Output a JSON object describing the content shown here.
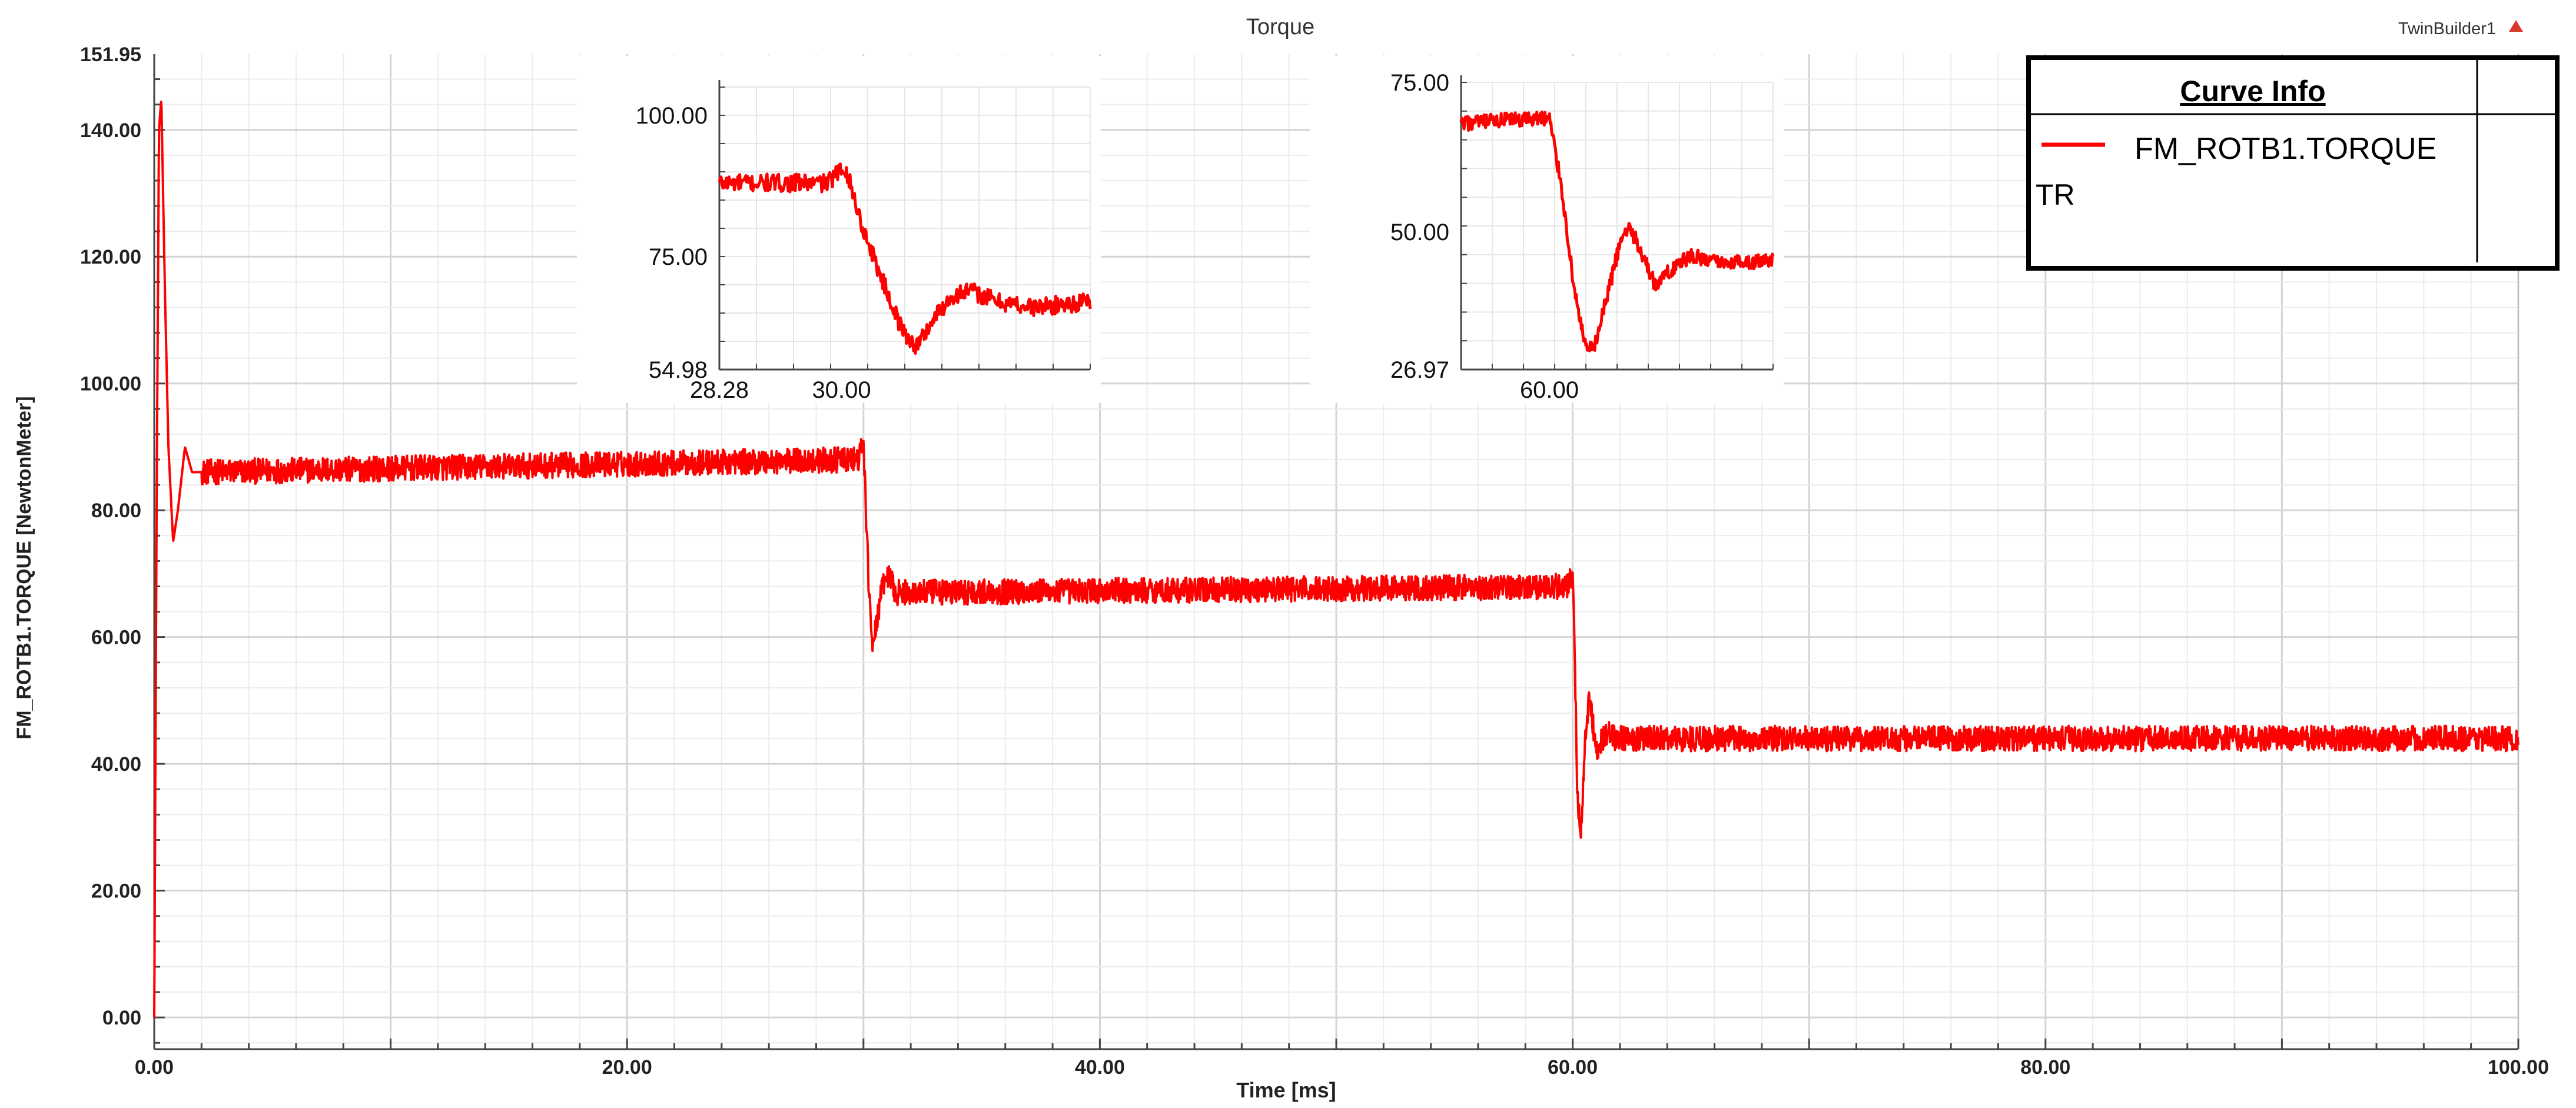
{
  "chart_data": [
    {
      "id": "main",
      "type": "line",
      "title": "Torque",
      "corner_label": "TwinBuilder1",
      "corner_icon": "red-triangle-icon",
      "xlabel": "Time [ms]",
      "ylabel": "FM_ROTB1.TORQUE [NewtonMeter]",
      "xlim": [
        0,
        100
      ],
      "ylim": [
        -5,
        151.95
      ],
      "xticks": [
        "0.00",
        "20.00",
        "40.00",
        "60.00",
        "80.00",
        "100.00"
      ],
      "xtick_values": [
        0,
        20,
        40,
        60,
        80,
        100
      ],
      "yticks": [
        "0.00",
        "20.00",
        "40.00",
        "60.00",
        "80.00",
        "100.00",
        "120.00",
        "140.00",
        "151.95"
      ],
      "ytick_values": [
        0,
        20,
        40,
        60,
        80,
        100,
        120,
        140,
        151.95
      ],
      "grid": true,
      "series": [
        {
          "name": "FM_ROTB1.TORQUE",
          "color": "#ff0000",
          "keypoints": [
            [
              0,
              0
            ],
            [
              0.1,
              80
            ],
            [
              0.2,
              140
            ],
            [
              0.3,
              145
            ],
            [
              0.45,
              115
            ],
            [
              0.6,
              90
            ],
            [
              0.8,
              75
            ],
            [
              1.0,
              80
            ],
            [
              1.3,
              90
            ],
            [
              1.6,
              86
            ],
            [
              29.8,
              88
            ],
            [
              30.0,
              91
            ],
            [
              30.2,
              70
            ],
            [
              30.4,
              58
            ],
            [
              30.7,
              66
            ],
            [
              31.0,
              70
            ],
            [
              31.4,
              67
            ],
            [
              59.8,
              68
            ],
            [
              60.0,
              70
            ],
            [
              60.1,
              55
            ],
            [
              60.2,
              35
            ],
            [
              60.35,
              29
            ],
            [
              60.55,
              45
            ],
            [
              60.7,
              51
            ],
            [
              61.0,
              42
            ],
            [
              61.4,
              45
            ],
            [
              61.8,
              44
            ],
            [
              100,
              44
            ]
          ],
          "noise": 2.0
        }
      ],
      "legend": {
        "title": "Curve Info",
        "entry": "FM_ROTB1.TORQUE",
        "entry_sub": "TR",
        "placement": "top-right"
      }
    },
    {
      "id": "inset_left",
      "type": "line",
      "xlim": [
        28.28,
        33.5
      ],
      "ylim": [
        54.98,
        105
      ],
      "xticks": [
        "28.28",
        "30.00"
      ],
      "xtick_values": [
        28.28,
        30.0
      ],
      "yticks": [
        "54.98",
        "75.00",
        "100.00"
      ],
      "ytick_values": [
        54.98,
        75.0,
        100.0
      ],
      "series": [
        {
          "color": "#ff0000",
          "keypoints": [
            [
              28.28,
              88
            ],
            [
              29.8,
              88
            ],
            [
              30.05,
              91
            ],
            [
              30.3,
              80
            ],
            [
              30.6,
              70
            ],
            [
              30.85,
              62
            ],
            [
              31.05,
              59
            ],
            [
              31.3,
              64
            ],
            [
              31.55,
              68
            ],
            [
              31.8,
              69
            ],
            [
              32.2,
              67
            ],
            [
              32.7,
              66
            ],
            [
              33.5,
              67
            ]
          ],
          "noise": 1.6
        }
      ]
    },
    {
      "id": "inset_right",
      "type": "line",
      "xlim": [
        58.5,
        63.8
      ],
      "ylim": [
        26.97,
        75
      ],
      "xticks": [
        "60.00"
      ],
      "xtick_values": [
        60.0
      ],
      "yticks": [
        "26.97",
        "50.00",
        "75.00"
      ],
      "ytick_values": [
        26.97,
        50.0,
        75.0
      ],
      "series": [
        {
          "color": "#ff0000",
          "keypoints": [
            [
              58.5,
              68
            ],
            [
              59.8,
              69
            ],
            [
              60.0,
              69
            ],
            [
              60.2,
              58
            ],
            [
              60.4,
              42
            ],
            [
              60.6,
              31
            ],
            [
              60.75,
              30
            ],
            [
              60.95,
              38
            ],
            [
              61.2,
              48
            ],
            [
              61.35,
              51
            ],
            [
              61.55,
              47
            ],
            [
              61.8,
              41
            ],
            [
              62.1,
              44
            ],
            [
              62.4,
              46
            ],
            [
              62.8,
              45
            ],
            [
              63.8,
              45
            ]
          ],
          "noise": 1.3
        }
      ]
    }
  ]
}
